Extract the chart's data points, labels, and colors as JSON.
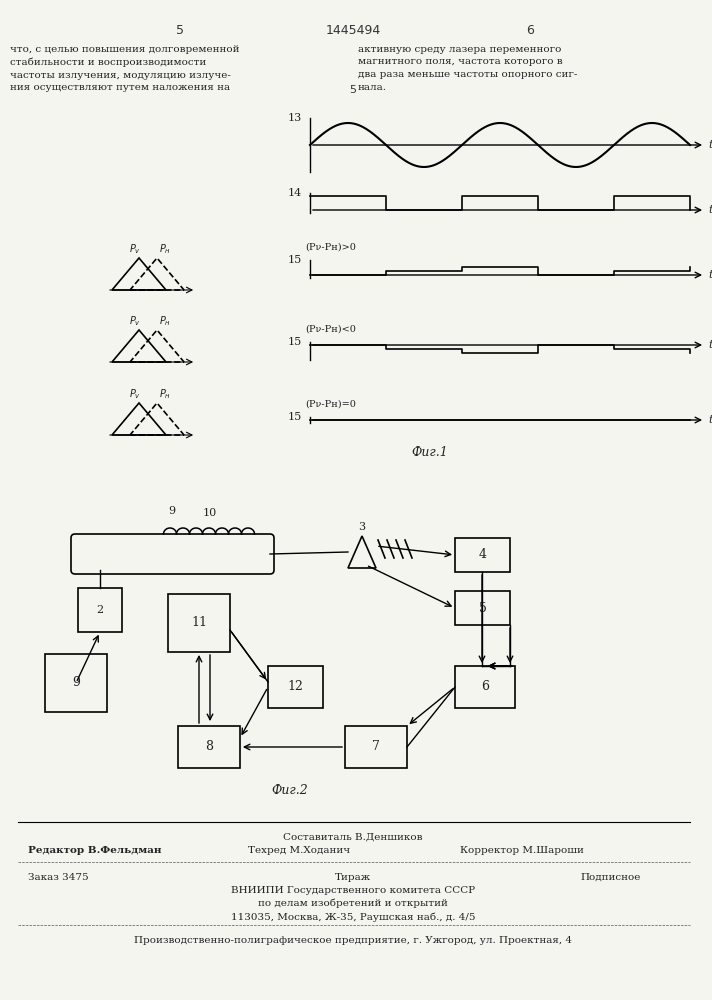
{
  "page_number_left": "5",
  "page_number_center": "1445494",
  "page_number_right": "6",
  "text_left": "что, с целью повышения долговременной\nстабильности и воспроизводимости\nчастоты излучения, модуляцию излуче-\nния осуществляют путем наложения на",
  "text_right": "активную среду лазера переменного\nмагнитного поля, частота которого в\nдва раза меньше частоты опорного сиг-\nнала.",
  "fig1_label": "Фиг.1",
  "fig2_label": "Фиг.2",
  "label_13": "13",
  "label_14": "14",
  "label_15a": "15",
  "label_15b": "15",
  "label_15c": "15",
  "label_pv_ph_pos": "(Pν-Pн)>0",
  "label_pv_ph_neg": "(Pν-Pн)<0",
  "label_pv_ph_zero": "(Pν-Pн)=0",
  "label_5_center": "5",
  "footer_sestavitel": "Составиталь В.Деншиков",
  "footer_redaktor": "Редактор В.Фельдман",
  "footer_tehred": "Техред М.Ходанич",
  "footer_korrektor": "Корректор М.Шароши",
  "footer_zakaz": "Заказ 3475",
  "footer_tirazh": "Тираж",
  "footer_podpisnoe": "Подписное",
  "footer_vnipi": "ВНИИПИ Государственного комитета СССР",
  "footer_po_delam": "по делам изобретений и открытий",
  "footer_address": "113035, Москва, Ж-35, Раушская наб., д. 4/5",
  "footer_proizv": "Производственно-полиграфическое предприятие, г. Ужгород, ул. Проектная, 4",
  "bg_color": "#f5f5f0"
}
